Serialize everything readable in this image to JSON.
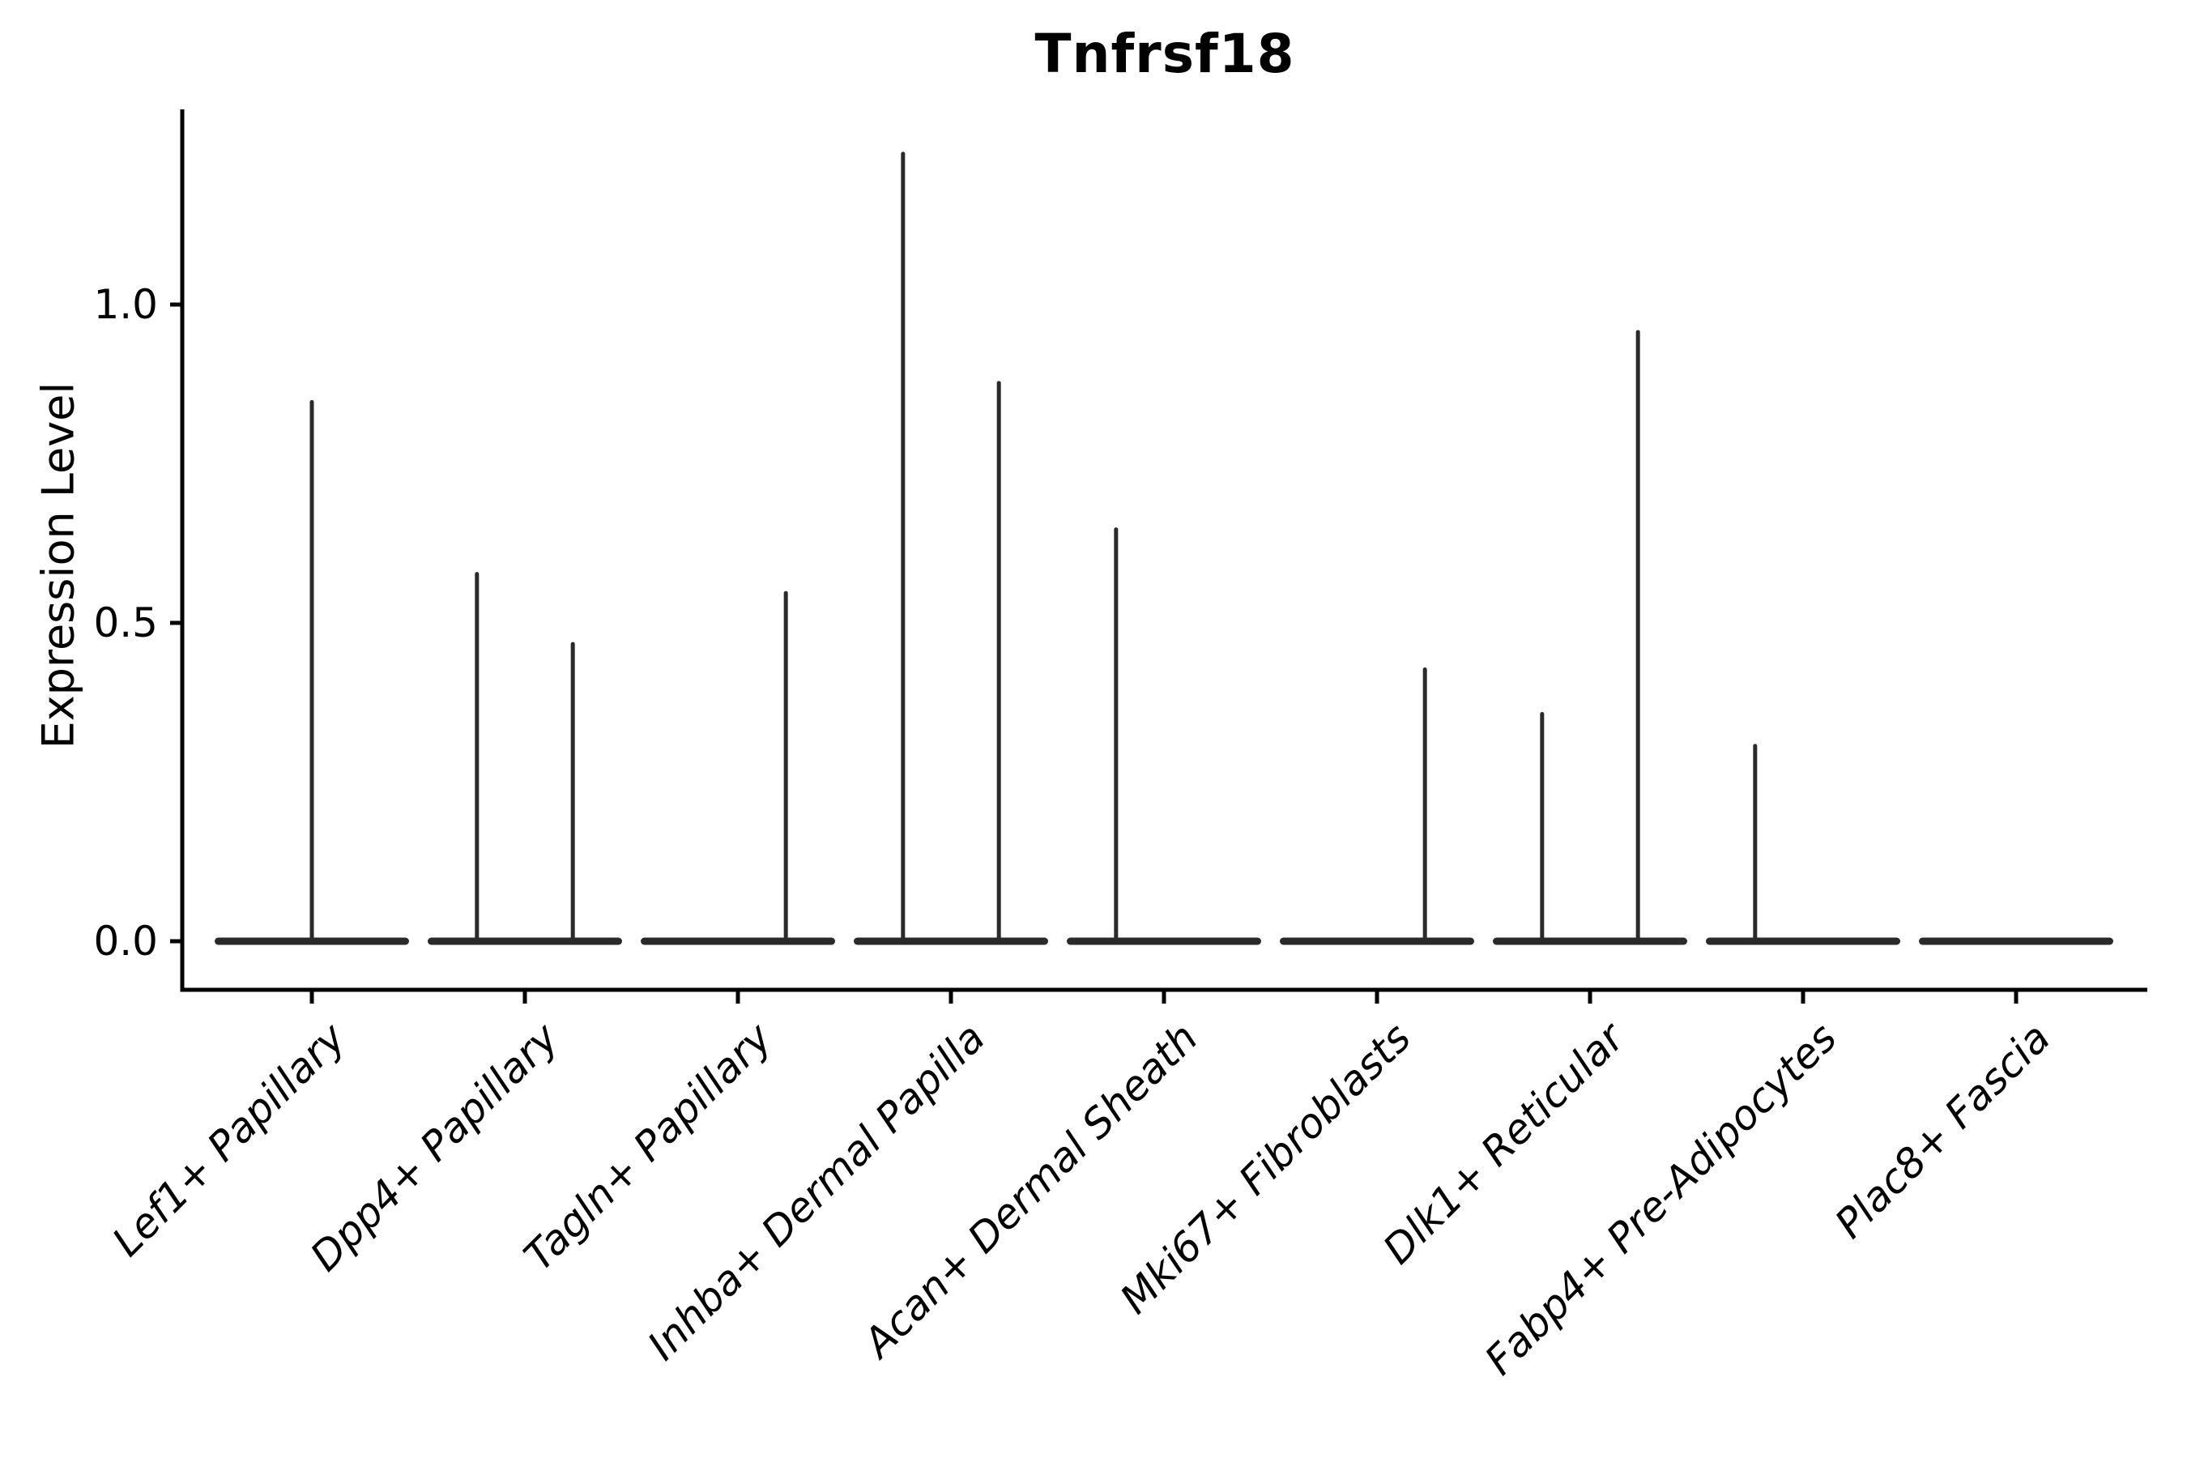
{
  "figure": {
    "title": "Tnfrsf18",
    "background_color": "#ffffff",
    "text_color": "#000000"
  },
  "chart_data": {
    "type": "violin",
    "title": "Tnfrsf18",
    "xlabel": "",
    "ylabel": "Expression Level",
    "ylim": [
      -0.08,
      1.31
    ],
    "yticks": [
      0.0,
      0.5,
      1.0
    ],
    "ytick_labels": [
      "0.0",
      "0.5",
      "1.0"
    ],
    "grid": false,
    "legend": null,
    "x_tick_label_rotation_deg": 45,
    "x_tick_label_style": "italic",
    "violin_color": "#2a2a2a",
    "axis_color": "#000000",
    "categories": [
      "Lef1+ Papillary",
      "Dpp4+ Papillary",
      "Tagln+ Papillary",
      "Inhba+ Dermal Papilla",
      "Acan+ Dermal Sheath",
      "Mki67+ Fibroblasts",
      "Dlk1+ Reticular",
      "Fabp4+ Pre-Adipocytes",
      "Plac8+ Fascia"
    ],
    "violins": [
      {
        "category": "Lef1+ Papillary",
        "base_value": 0.0,
        "spikes": [
          {
            "offset_frac": 0.0,
            "value": 0.85
          }
        ]
      },
      {
        "category": "Dpp4+ Papillary",
        "base_value": 0.0,
        "spikes": [
          {
            "offset_frac": -0.225,
            "value": 0.58
          },
          {
            "offset_frac": 0.225,
            "value": 0.47
          }
        ]
      },
      {
        "category": "Tagln+ Papillary",
        "base_value": 0.0,
        "spikes": [
          {
            "offset_frac": 0.225,
            "value": 0.55
          }
        ]
      },
      {
        "category": "Inhba+ Dermal Papilla",
        "base_value": 0.0,
        "spikes": [
          {
            "offset_frac": -0.225,
            "value": 1.24
          },
          {
            "offset_frac": 0.225,
            "value": 0.88
          }
        ]
      },
      {
        "category": "Acan+ Dermal Sheath",
        "base_value": 0.0,
        "spikes": [
          {
            "offset_frac": -0.225,
            "value": 0.65
          }
        ]
      },
      {
        "category": "Mki67+ Fibroblasts",
        "base_value": 0.0,
        "spikes": [
          {
            "offset_frac": 0.225,
            "value": 0.43
          }
        ]
      },
      {
        "category": "Dlk1+ Reticular",
        "base_value": 0.0,
        "spikes": [
          {
            "offset_frac": -0.225,
            "value": 0.36
          },
          {
            "offset_frac": 0.225,
            "value": 0.96
          }
        ]
      },
      {
        "category": "Fabp4+ Pre-Adipocytes",
        "base_value": 0.0,
        "spikes": [
          {
            "offset_frac": -0.225,
            "value": 0.31
          }
        ]
      },
      {
        "category": "Plac8+ Fascia",
        "base_value": 0.0,
        "spikes": []
      }
    ]
  }
}
